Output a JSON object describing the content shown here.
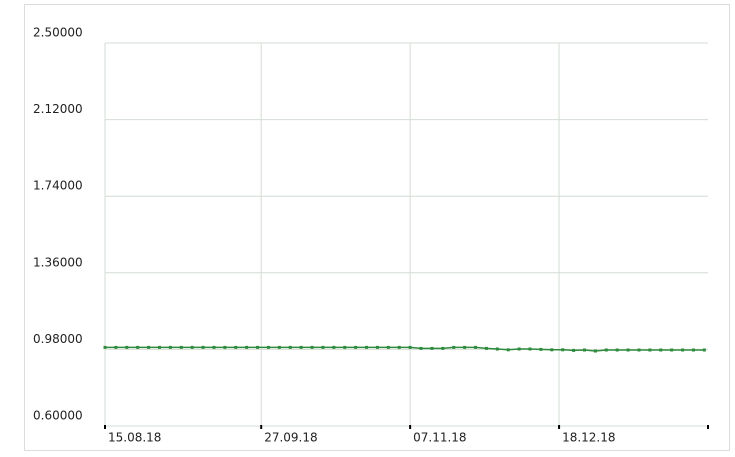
{
  "chart_data": {
    "type": "line",
    "x": [
      "15.08.18",
      "18.08.18",
      "21.08.18",
      "24.08.18",
      "27.08.18",
      "30.08.18",
      "02.09.18",
      "05.09.18",
      "08.09.18",
      "11.09.18",
      "14.09.18",
      "17.09.18",
      "20.09.18",
      "23.09.18",
      "26.09.18",
      "29.09.18",
      "02.10.18",
      "05.10.18",
      "08.10.18",
      "11.10.18",
      "14.10.18",
      "17.10.18",
      "20.10.18",
      "23.10.18",
      "26.10.18",
      "29.10.18",
      "01.11.18",
      "04.11.18",
      "07.11.18",
      "10.11.18",
      "13.11.18",
      "16.11.18",
      "19.11.18",
      "22.11.18",
      "25.11.18",
      "28.11.18",
      "01.12.18",
      "04.12.18",
      "07.12.18",
      "10.12.18",
      "13.12.18",
      "16.12.18",
      "19.12.18",
      "22.12.18",
      "25.12.18",
      "28.12.18",
      "31.12.18",
      "03.01.19",
      "06.01.19",
      "09.01.19",
      "12.01.19",
      "15.01.19",
      "18.01.19",
      "21.01.19",
      "24.01.19",
      "27.01.19"
    ],
    "series": [
      {
        "color": "#2e8b3e",
        "values": [
          0.99,
          0.99,
          0.99,
          0.99,
          0.99,
          0.99,
          0.99,
          0.99,
          0.99,
          0.99,
          0.99,
          0.99,
          0.99,
          0.99,
          0.99,
          0.99,
          0.99,
          0.99,
          0.99,
          0.99,
          0.99,
          0.99,
          0.99,
          0.99,
          0.99,
          0.99,
          0.99,
          0.99,
          0.99,
          0.985,
          0.985,
          0.985,
          0.99,
          0.99,
          0.99,
          0.985,
          0.982,
          0.978,
          0.982,
          0.982,
          0.98,
          0.978,
          0.978,
          0.975,
          0.977,
          0.972,
          0.977,
          0.977,
          0.977,
          0.977,
          0.977,
          0.977,
          0.977,
          0.977,
          0.977,
          0.977
        ]
      }
    ],
    "xlim": [
      "15.08.18",
      "28.01.19"
    ],
    "xticks": [
      "15.08.18",
      "27.09.18",
      "07.11.18",
      "18.12.18"
    ],
    "ylim": [
      0.6,
      2.5
    ],
    "yticks": [
      {
        "value": 0.6,
        "label": "0.60000"
      },
      {
        "value": 0.98,
        "label": "0.98000"
      },
      {
        "value": 1.36,
        "label": "1.36000"
      },
      {
        "value": 1.74,
        "label": "1.74000"
      },
      {
        "value": 2.12,
        "label": "2.12000"
      },
      {
        "value": 2.5,
        "label": "2.50000"
      }
    ],
    "grid": true
  }
}
